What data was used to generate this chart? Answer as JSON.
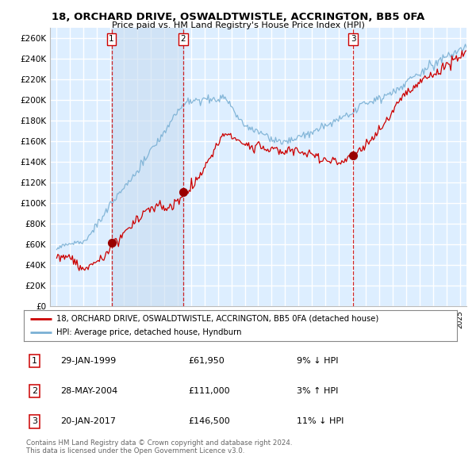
{
  "title": "18, ORCHARD DRIVE, OSWALDTWISTLE, ACCRINGTON, BB5 0FA",
  "subtitle": "Price paid vs. HM Land Registry's House Price Index (HPI)",
  "ylabel_ticks": [
    "£0",
    "£20K",
    "£40K",
    "£60K",
    "£80K",
    "£100K",
    "£120K",
    "£140K",
    "£160K",
    "£180K",
    "£200K",
    "£220K",
    "£240K",
    "£260K"
  ],
  "ytick_values": [
    0,
    20000,
    40000,
    60000,
    80000,
    100000,
    120000,
    140000,
    160000,
    180000,
    200000,
    220000,
    240000,
    260000
  ],
  "ylim": [
    0,
    270000
  ],
  "sale_color": "#cc0000",
  "hpi_color": "#7ab0d4",
  "hpi_fill_color": "#ddeeff",
  "transaction_marker_color": "#990000",
  "transaction_box_color": "#cc0000",
  "grid_color": "#cccccc",
  "bg_color": "#ffffff",
  "legend_label_sale": "18, ORCHARD DRIVE, OSWALDTWISTLE, ACCRINGTON, BB5 0FA (detached house)",
  "legend_label_hpi": "HPI: Average price, detached house, Hyndburn",
  "transactions": [
    {
      "num": 1,
      "date": "29-JAN-1999",
      "price": 61950,
      "pct": "9%",
      "dir": "↓",
      "year_x": 1999.08
    },
    {
      "num": 2,
      "date": "28-MAY-2004",
      "price": 111000,
      "pct": "3%",
      "dir": "↑",
      "year_x": 2004.42
    },
    {
      "num": 3,
      "date": "20-JAN-2017",
      "price": 146500,
      "pct": "11%",
      "dir": "↓",
      "year_x": 2017.06
    }
  ],
  "footer": "Contains HM Land Registry data © Crown copyright and database right 2024.\nThis data is licensed under the Open Government Licence v3.0.",
  "note_rows": [
    {
      "num": 1,
      "date": "29-JAN-1999",
      "price": "£61,950",
      "rel": "9% ↓ HPI"
    },
    {
      "num": 2,
      "date": "28-MAY-2004",
      "price": "£111,000",
      "rel": "3% ↑ HPI"
    },
    {
      "num": 3,
      "date": "20-JAN-2017",
      "price": "£146,500",
      "rel": "11% ↓ HPI"
    }
  ],
  "xmin": 1995.0,
  "xmax": 2025.5
}
